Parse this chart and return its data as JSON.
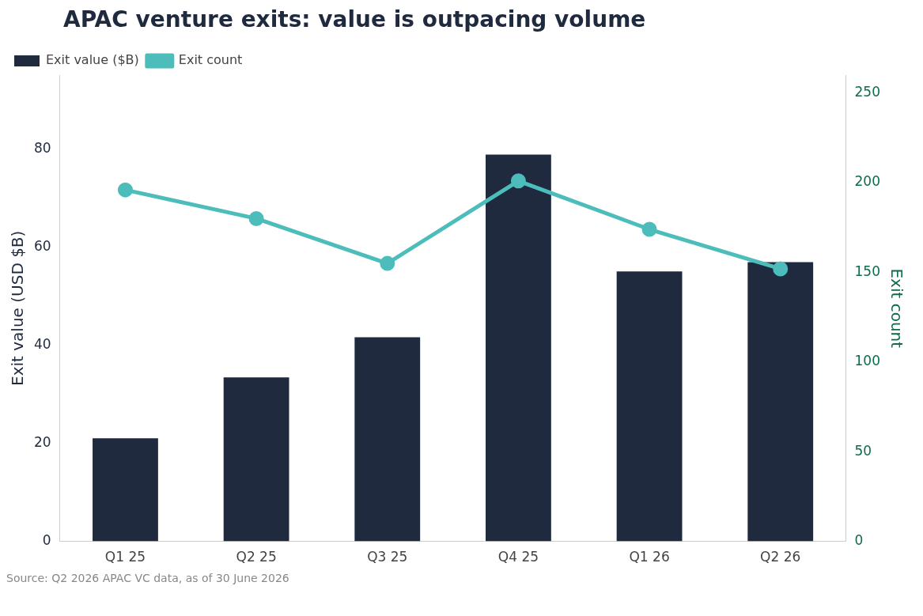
{
  "chart_data": {
    "type": "bar",
    "title": "APAC venture exits: value is outpacing volume",
    "categories": [
      "Q1 25",
      "Q2 25",
      "Q3 25",
      "Q4 25",
      "Q1 26",
      "Q2 26"
    ],
    "series": [
      {
        "name": "Exit value ($B)",
        "color": "#1f2a3f",
        "values": [
          21.0,
          33.4,
          41.6,
          78.8,
          55.0,
          56.9
        ]
      },
      {
        "name": "Exit count",
        "type": "line",
        "axis": "y2",
        "color": "#4dbdbb",
        "values": [
          196,
          180,
          155,
          201,
          174,
          152
        ]
      }
    ],
    "ylabel": "Exit value (USD $B)",
    "y2label": "Exit count",
    "ylim": [
      0,
      95
    ],
    "yticks": [
      0,
      20,
      40,
      60,
      80
    ],
    "y2lim": [
      0,
      260
    ],
    "y2ticks": [
      0,
      50,
      100,
      150,
      200,
      250
    ],
    "grid": false,
    "legend": "top left",
    "marker": "circle",
    "line_style": "solid",
    "annotations": [
      "Source: Q2 2026 APAC VC data, as of 30 June 2026"
    ]
  }
}
